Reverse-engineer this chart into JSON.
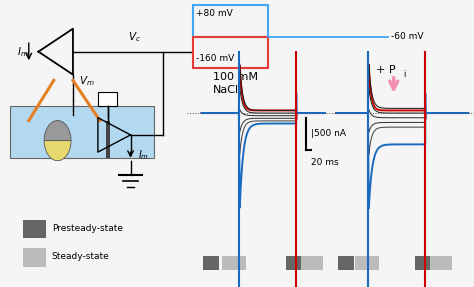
{
  "fig_width": 4.74,
  "fig_height": 2.87,
  "bg_color_right": "#e8f5e9",
  "bg_color_left": "#ffffff",
  "fig_bg": "#f5f5f5",
  "blue_color": "#42a5f5",
  "red_color": "#e53935",
  "trace_red": "#cc0000",
  "trace_blue": "#1a6bbf",
  "trace_black": "#1a1a1a",
  "dotted_color": "#555555",
  "arrow_color": "#f48fb1",
  "presteady_color": "#666666",
  "steady_color": "#bbbbbb",
  "legend_presteady": "Presteady-state",
  "legend_steady": "Steady-state",
  "orange_color": "#e67e22",
  "bath_color": "#b3d9f0",
  "oocyte_top_color": "#999999",
  "oocyte_bot_color": "#e8d870",
  "n_traces": 7,
  "label_100mM": "100 mM\nNaCl",
  "label_Pi": "+ P",
  "label_Pi_sub": "i",
  "scale_nA": "|500 nA",
  "scale_ms": "20 ms",
  "label_80mV": "+80 mV",
  "label_160mV": "-160 mV",
  "label_60mV": "-60 mV",
  "label_Vc": "$V_c$",
  "label_Im": "$I_m$",
  "label_Vm": "$V_m$"
}
